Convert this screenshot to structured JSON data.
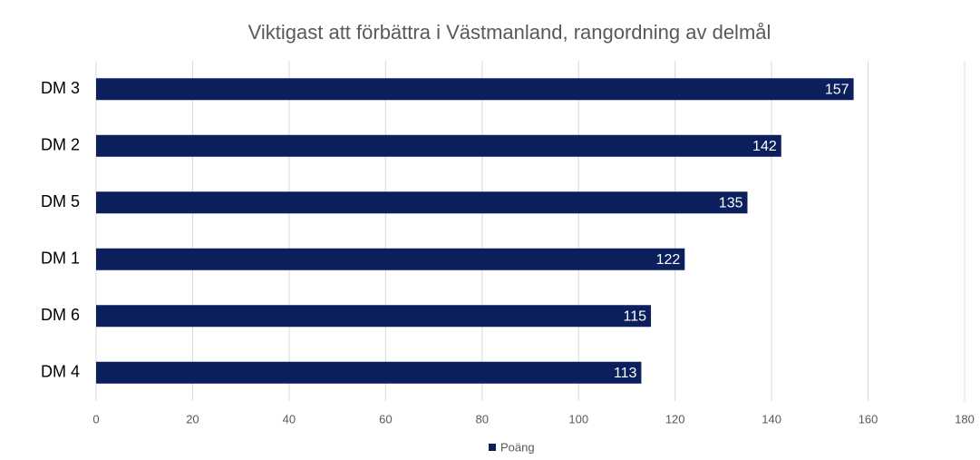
{
  "chart_data": {
    "type": "barh",
    "title": "Viktigast att förbättra i Västmanland, rangordning av delmål",
    "categories": [
      "DM 3",
      "DM 2",
      "DM 5",
      "DM 1",
      "DM 6",
      "DM 4"
    ],
    "series": [
      {
        "name": "Poäng",
        "color": "#0b1f5c",
        "values": [
          157,
          142,
          135,
          122,
          115,
          113
        ]
      }
    ],
    "xlim": [
      0,
      180
    ],
    "xticks": [
      0,
      20,
      40,
      60,
      80,
      100,
      120,
      140,
      160,
      180
    ],
    "grid": true,
    "legend": "bottom"
  }
}
